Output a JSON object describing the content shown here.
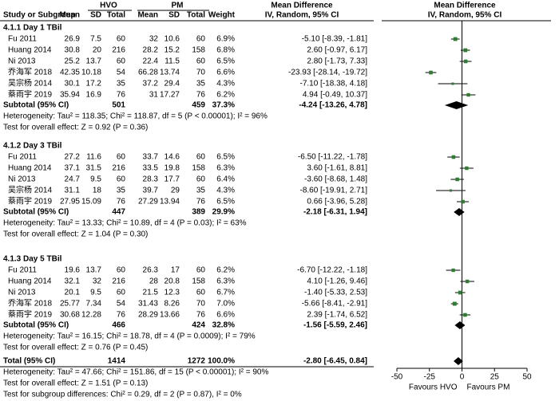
{
  "chart_data": {
    "type": "forest",
    "headers": {
      "group1": "HVO",
      "group2": "PM",
      "effect_top": "Mean Difference",
      "plot_top": "Mean Difference",
      "study": "Study or Subgroup",
      "mean1": "Mean",
      "sd1": "SD",
      "total1": "Total",
      "mean2": "Mean",
      "sd2": "SD",
      "total2": "Total",
      "weight": "Weight",
      "effect": "IV, Random, 95% CI",
      "plot": "IV, Random, 95% CI"
    },
    "subgroups": [
      {
        "title": "4.1.1 Day 1 TBil",
        "studies": [
          {
            "name": "Fu 2011",
            "mean1": 26.9,
            "sd1": 7.5,
            "n1": 60,
            "mean2": 32,
            "sd2": 10.6,
            "n2": 60,
            "weight": 6.9,
            "weight_label": "6.9%",
            "md": -5.1,
            "lo": -8.39,
            "hi": -1.81,
            "label": "-5.10 [-8.39, -1.81]"
          },
          {
            "name": "Huang 2014",
            "mean1": 30.8,
            "sd1": 20,
            "n1": 216,
            "mean2": 28.2,
            "sd2": 15.2,
            "n2": 158,
            "weight": 6.8,
            "weight_label": "6.8%",
            "md": 2.6,
            "lo": -0.97,
            "hi": 6.17,
            "label": "2.60 [-0.97, 6.17]"
          },
          {
            "name": "Ni 2013",
            "mean1": 25.2,
            "sd1": 13.7,
            "n1": 60,
            "mean2": 22.4,
            "sd2": 11.5,
            "n2": 60,
            "weight": 6.5,
            "weight_label": "6.5%",
            "md": 2.8,
            "lo": -1.73,
            "hi": 7.33,
            "label": "2.80 [-1.73, 7.33]"
          },
          {
            "name": "乔海军 2018",
            "mean1": 42.35,
            "sd1": 10.18,
            "n1": 54,
            "mean2": 66.28,
            "sd2": 13.74,
            "n2": 70,
            "weight": 6.6,
            "weight_label": "6.6%",
            "md": -23.93,
            "lo": -28.14,
            "hi": -19.72,
            "label": "-23.93 [-28.14, -19.72]"
          },
          {
            "name": "吴宗杨 2014",
            "mean1": 30.1,
            "sd1": 17.2,
            "n1": 35,
            "mean2": 37.2,
            "sd2": 29.4,
            "n2": 35,
            "weight": 4.3,
            "weight_label": "4.3%",
            "md": -7.1,
            "lo": -18.38,
            "hi": 4.18,
            "label": "-7.10 [-18.38, 4.18]"
          },
          {
            "name": "蔡雨宇 2019",
            "mean1": 35.94,
            "sd1": 16.9,
            "n1": 76,
            "mean2": 31,
            "sd2": 17.27,
            "n2": 76,
            "weight": 6.2,
            "weight_label": "6.2%",
            "md": 4.94,
            "lo": -0.49,
            "hi": 10.37,
            "label": "4.94 [-0.49, 10.37]"
          }
        ],
        "subtotal": {
          "name": "Subtotal (95% CI)",
          "n1": 501,
          "n2": 459,
          "weight": 37.3,
          "weight_label": "37.3%",
          "md": -4.24,
          "lo": -13.26,
          "hi": 4.78,
          "label": "-4.24 [-13.26, 4.78]"
        },
        "heterogeneity": "Heterogeneity: Tau² = 118.35; Chi² = 118.87, df = 5 (P < 0.00001); I² = 96%",
        "overall": "Test for overall effect: Z = 0.92 (P = 0.36)"
      },
      {
        "title": "4.1.2 Day 3 TBil",
        "studies": [
          {
            "name": "Fu 2011",
            "mean1": 27.2,
            "sd1": 11.6,
            "n1": 60,
            "mean2": 33.7,
            "sd2": 14.6,
            "n2": 60,
            "weight": 6.5,
            "weight_label": "6.5%",
            "md": -6.5,
            "lo": -11.22,
            "hi": -1.78,
            "label": "-6.50 [-11.22, -1.78]"
          },
          {
            "name": "Huang 2014",
            "mean1": 37.1,
            "sd1": 31.5,
            "n1": 216,
            "mean2": 33.5,
            "sd2": 19.8,
            "n2": 158,
            "weight": 6.3,
            "weight_label": "6.3%",
            "md": 3.6,
            "lo": -1.61,
            "hi": 8.81,
            "label": "3.60 [-1.61, 8.81]"
          },
          {
            "name": "Ni 2013",
            "mean1": 24.7,
            "sd1": 9.5,
            "n1": 60,
            "mean2": 28.3,
            "sd2": 17.7,
            "n2": 60,
            "weight": 6.4,
            "weight_label": "6.4%",
            "md": -3.6,
            "lo": -8.68,
            "hi": 1.48,
            "label": "-3.60 [-8.68, 1.48]"
          },
          {
            "name": "吴宗杨 2014",
            "mean1": 31.1,
            "sd1": 18,
            "n1": 35,
            "mean2": 39.7,
            "sd2": 29,
            "n2": 35,
            "weight": 4.3,
            "weight_label": "4.3%",
            "md": -8.6,
            "lo": -19.91,
            "hi": 2.71,
            "label": "-8.60 [-19.91, 2.71]"
          },
          {
            "name": "蔡雨宇 2019",
            "mean1": 27.95,
            "sd1": 15.09,
            "n1": 76,
            "mean2": 27.29,
            "sd2": 13.94,
            "n2": 76,
            "weight": 6.5,
            "weight_label": "6.5%",
            "md": 0.66,
            "lo": -3.96,
            "hi": 5.28,
            "label": "0.66 [-3.96, 5.28]"
          }
        ],
        "subtotal": {
          "name": "Subtotal (95% CI)",
          "n1": 447,
          "n2": 389,
          "weight": 29.9,
          "weight_label": "29.9%",
          "md": -2.18,
          "lo": -6.31,
          "hi": 1.94,
          "label": "-2.18 [-6.31, 1.94]"
        },
        "heterogeneity": "Heterogeneity: Tau² = 13.33; Chi² = 10.89, df = 4 (P = 0.03); I² = 63%",
        "overall": "Test for overall effect: Z = 1.04 (P = 0.30)"
      },
      {
        "title": "4.1.3 Day 5 TBil",
        "studies": [
          {
            "name": "Fu 2011",
            "mean1": 19.6,
            "sd1": 13.7,
            "n1": 60,
            "mean2": 26.3,
            "sd2": 17,
            "n2": 60,
            "weight": 6.2,
            "weight_label": "6.2%",
            "md": -6.7,
            "lo": -12.22,
            "hi": -1.18,
            "label": "-6.70 [-12.22, -1.18]"
          },
          {
            "name": "Huang 2014",
            "mean1": 32.1,
            "sd1": 32,
            "n1": 216,
            "mean2": 28,
            "sd2": 20.8,
            "n2": 158,
            "weight": 6.3,
            "weight_label": "6.3%",
            "md": 4.1,
            "lo": -1.26,
            "hi": 9.46,
            "label": "4.10 [-1.26, 9.46]"
          },
          {
            "name": "Ni 2013",
            "mean1": 20.1,
            "sd1": 9.5,
            "n1": 60,
            "mean2": 21.5,
            "sd2": 12.3,
            "n2": 60,
            "weight": 6.7,
            "weight_label": "6.7%",
            "md": -1.4,
            "lo": -5.33,
            "hi": 2.53,
            "label": "-1.40 [-5.33, 2.53]"
          },
          {
            "name": "乔海军 2018",
            "mean1": 25.77,
            "sd1": 7.34,
            "n1": 54,
            "mean2": 31.43,
            "sd2": 8.26,
            "n2": 70,
            "weight": 7.0,
            "weight_label": "7.0%",
            "md": -5.66,
            "lo": -8.41,
            "hi": -2.91,
            "label": "-5.66 [-8.41, -2.91]"
          },
          {
            "name": "蔡雨宇 2019",
            "mean1": 30.68,
            "sd1": 12.28,
            "n1": 76,
            "mean2": 28.29,
            "sd2": 13.66,
            "n2": 76,
            "weight": 6.6,
            "weight_label": "6.6%",
            "md": 2.39,
            "lo": -1.74,
            "hi": 6.52,
            "label": "2.39 [-1.74, 6.52]"
          }
        ],
        "subtotal": {
          "name": "Subtotal (95% CI)",
          "n1": 466,
          "n2": 424,
          "weight": 32.8,
          "weight_label": "32.8%",
          "md": -1.56,
          "lo": -5.59,
          "hi": 2.46,
          "label": "-1.56 [-5.59, 2.46]"
        },
        "heterogeneity": "Heterogeneity: Tau² = 16.15; Chi² = 18.78, df = 4 (P = 0.0009); I² = 79%",
        "overall": "Test for overall effect: Z = 0.76 (P = 0.45)"
      }
    ],
    "total": {
      "name": "Total (95% CI)",
      "n1": 1414,
      "n2": 1272,
      "weight": 100.0,
      "weight_label": "100.0%",
      "md": -2.8,
      "lo": -6.45,
      "hi": 0.84,
      "label": "-2.80 [-6.45, 0.84]"
    },
    "total_heterogeneity": "Heterogeneity: Tau² = 47.66; Chi² = 151.86, df = 15 (P < 0.00001); I² = 90%",
    "total_overall": "Test for overall effect: Z = 1.51 (P = 0.13)",
    "subgroup_differences": "Test for subgroup differences: Chi² = 0.29, df = 2 (P = 0.87), I² = 0%",
    "xlim": [
      -50,
      50
    ],
    "xticks": [
      -50,
      -25,
      0,
      25,
      50
    ],
    "xlabel_left": "Favours HVO",
    "xlabel_right": "Favours PM",
    "marker_color": "#2e7d32",
    "diamond_color": "#000000"
  }
}
